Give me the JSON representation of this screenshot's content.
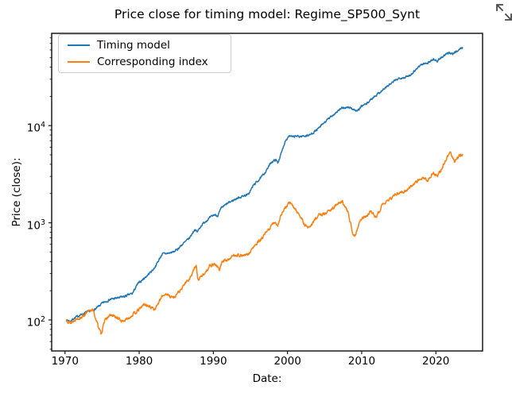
{
  "page": {
    "background": "#ffffff",
    "expand_button": {
      "icon": "expand-arrows-icon"
    }
  },
  "chart_data": {
    "type": "line",
    "title": "Price close for timing model: Regime_SP500_Synt",
    "xlabel": "Date:",
    "ylabel": "Price (close):",
    "x_scale": "linear",
    "y_scale": "log",
    "grid": false,
    "legend_position": "upper-left",
    "xlim": [
      1968.2,
      2026.3
    ],
    "ylim": [
      48,
      89000
    ],
    "x_ticks": [
      1970,
      1980,
      1990,
      2000,
      2010,
      2020
    ],
    "y_tick_exponents": [
      2,
      3,
      4
    ],
    "frame_color": "#1a1a1a",
    "series": [
      {
        "name": "Timing model",
        "color": "#1f77b4",
        "points": [
          [
            1970.2,
            100
          ],
          [
            1970.7,
            97
          ],
          [
            1971.2,
            104
          ],
          [
            1972,
            112
          ],
          [
            1972.9,
            120
          ],
          [
            1973.6,
            124
          ],
          [
            1974.2,
            131
          ],
          [
            1975,
            148
          ],
          [
            1976.1,
            163
          ],
          [
            1977,
            168
          ],
          [
            1978,
            174
          ],
          [
            1979.1,
            188
          ],
          [
            1979.8,
            235
          ],
          [
            1980.9,
            278
          ],
          [
            1982,
            338
          ],
          [
            1982.5,
            395
          ],
          [
            1983.1,
            478
          ],
          [
            1983.9,
            485
          ],
          [
            1984.6,
            500
          ],
          [
            1985.1,
            530
          ],
          [
            1985.7,
            588
          ],
          [
            1986.2,
            635
          ],
          [
            1986.8,
            700
          ],
          [
            1987.5,
            858
          ],
          [
            1987.8,
            800
          ],
          [
            1988.4,
            945
          ],
          [
            1988.9,
            1030
          ],
          [
            1989.5,
            1120
          ],
          [
            1990.1,
            1210
          ],
          [
            1990.6,
            1185
          ],
          [
            1991.1,
            1425
          ],
          [
            1992,
            1595
          ],
          [
            1993.2,
            1790
          ],
          [
            1994.1,
            1900
          ],
          [
            1994.7,
            1950
          ],
          [
            1995.4,
            2430
          ],
          [
            1996.4,
            2900
          ],
          [
            1997.1,
            3400
          ],
          [
            1997.8,
            4200
          ],
          [
            1998.4,
            4450
          ],
          [
            1998.7,
            4150
          ],
          [
            1999.2,
            5300
          ],
          [
            1999.7,
            7000
          ],
          [
            2000.2,
            7900
          ],
          [
            2000.7,
            7600
          ],
          [
            2001.2,
            7800
          ],
          [
            2001.6,
            7700
          ],
          [
            2003,
            8000
          ],
          [
            2004.1,
            9200
          ],
          [
            2005,
            10800
          ],
          [
            2006.1,
            12800
          ],
          [
            2007,
            14600
          ],
          [
            2007.6,
            15300
          ],
          [
            2008.5,
            15300
          ],
          [
            2009.4,
            14000
          ],
          [
            2010.1,
            16100
          ],
          [
            2010.6,
            16600
          ],
          [
            2011.7,
            20000
          ],
          [
            2012.5,
            22200
          ],
          [
            2013.5,
            25500
          ],
          [
            2014.5,
            29000
          ],
          [
            2015.1,
            31000
          ],
          [
            2016,
            31500
          ],
          [
            2016.6,
            33500
          ],
          [
            2017.9,
            42000
          ],
          [
            2018.7,
            44000
          ],
          [
            2019.1,
            45000
          ],
          [
            2019.7,
            48500
          ],
          [
            2020.2,
            46000
          ],
          [
            2020.8,
            50500
          ],
          [
            2021.4,
            54000
          ],
          [
            2021.9,
            56500
          ],
          [
            2022.3,
            54800
          ],
          [
            2022.7,
            57500
          ],
          [
            2023.1,
            60500
          ],
          [
            2023.6,
            63500
          ]
        ]
      },
      {
        "name": "Corresponding index",
        "color": "#ff7f0e",
        "points": [
          [
            1970.2,
            100
          ],
          [
            1970.8,
            93
          ],
          [
            1971.4,
            102
          ],
          [
            1972.1,
            106
          ],
          [
            1972.9,
            117
          ],
          [
            1973.7,
            130
          ],
          [
            1974.2,
            100
          ],
          [
            1974.9,
            70
          ],
          [
            1975.2,
            95
          ],
          [
            1975.6,
            103
          ],
          [
            1976.1,
            112
          ],
          [
            1976.8,
            108
          ],
          [
            1977.7,
            97
          ],
          [
            1978.3,
            101
          ],
          [
            1978.9,
            110
          ],
          [
            1979.8,
            124
          ],
          [
            1980.7,
            146
          ],
          [
            1981.3,
            138
          ],
          [
            1982.1,
            130
          ],
          [
            1982.8,
            158
          ],
          [
            1983.1,
            176
          ],
          [
            1983.6,
            187
          ],
          [
            1984.1,
            176
          ],
          [
            1984.7,
            170
          ],
          [
            1985.1,
            187
          ],
          [
            1985.7,
            205
          ],
          [
            1986.2,
            240
          ],
          [
            1986.8,
            264
          ],
          [
            1987.3,
            328
          ],
          [
            1987.7,
            360
          ],
          [
            1987.9,
            257
          ],
          [
            1988.4,
            281
          ],
          [
            1988.9,
            309
          ],
          [
            1989.5,
            360
          ],
          [
            1990.2,
            380
          ],
          [
            1990.8,
            330
          ],
          [
            1991.2,
            397
          ],
          [
            1992,
            420
          ],
          [
            1992.9,
            470
          ],
          [
            1994,
            458
          ],
          [
            1994.7,
            470
          ],
          [
            1995.4,
            560
          ],
          [
            1996.4,
            670
          ],
          [
            1997.3,
            820
          ],
          [
            1998.2,
            1020
          ],
          [
            1998.7,
            950
          ],
          [
            1999.2,
            1250
          ],
          [
            1999.8,
            1450
          ],
          [
            2000.3,
            1620
          ],
          [
            2000.9,
            1430
          ],
          [
            2001.7,
            1180
          ],
          [
            2002.3,
            950
          ],
          [
            2002.9,
            890
          ],
          [
            2003.4,
            1000
          ],
          [
            2004.1,
            1190
          ],
          [
            2005.1,
            1250
          ],
          [
            2006,
            1400
          ],
          [
            2006.8,
            1570
          ],
          [
            2007.4,
            1620
          ],
          [
            2008.1,
            1320
          ],
          [
            2008.8,
            790
          ],
          [
            2009.1,
            740
          ],
          [
            2009.9,
            1100
          ],
          [
            2010.6,
            1150
          ],
          [
            2011.3,
            1350
          ],
          [
            2011.9,
            1120
          ],
          [
            2012.7,
            1480
          ],
          [
            2013.5,
            1700
          ],
          [
            2014.8,
            2000
          ],
          [
            2015.6,
            2080
          ],
          [
            2016.3,
            2250
          ],
          [
            2017.1,
            2550
          ],
          [
            2018,
            2900
          ],
          [
            2018.9,
            2720
          ],
          [
            2019.6,
            3300
          ],
          [
            2020.2,
            2980
          ],
          [
            2020.9,
            3750
          ],
          [
            2021.3,
            4400
          ],
          [
            2021.9,
            5350
          ],
          [
            2022.5,
            4280
          ],
          [
            2023.1,
            4820
          ],
          [
            2023.6,
            5050
          ]
        ]
      }
    ]
  }
}
